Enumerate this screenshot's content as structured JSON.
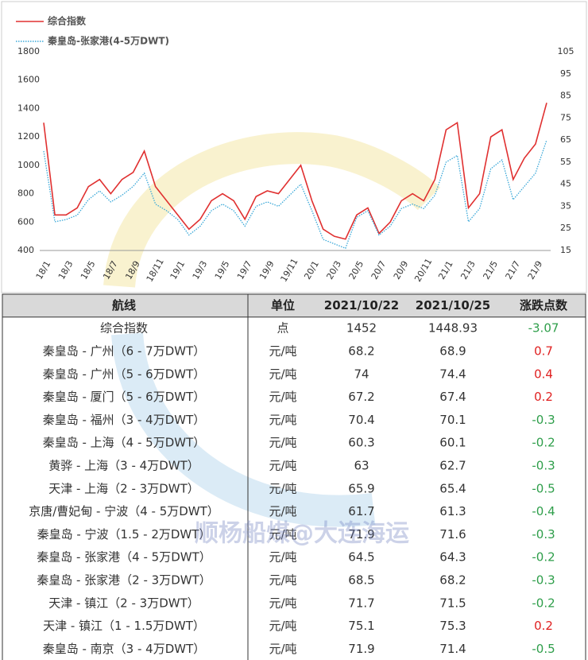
{
  "chart_data": {
    "type": "line",
    "categories": [
      "18/1",
      null,
      "18/3",
      null,
      "18/5",
      null,
      "18/7",
      null,
      "18/9",
      null,
      "18/11",
      null,
      "19/1",
      null,
      "19/3",
      null,
      "19/5",
      null,
      "19/7",
      null,
      "19/9",
      null,
      "19/11",
      null,
      "20/1",
      null,
      "20/3",
      null,
      "20/5",
      null,
      "20/7",
      null,
      "20/9",
      null,
      "20/11",
      null,
      "21/1",
      null,
      "21/3",
      null,
      "21/5",
      null,
      "21/7",
      null,
      "21/9",
      null
    ],
    "series": [
      {
        "name": "综合指数",
        "color": "#e03030",
        "style": "solid",
        "values": [
          1300,
          650,
          650,
          700,
          850,
          900,
          800,
          900,
          950,
          1100,
          850,
          750,
          650,
          550,
          620,
          750,
          800,
          750,
          620,
          780,
          820,
          800,
          900,
          1000,
          750,
          550,
          500,
          480,
          650,
          700,
          520,
          600,
          750,
          800,
          750,
          900,
          1250,
          1300,
          700,
          800,
          1200,
          1250,
          900,
          1050,
          1150,
          1440
        ]
      },
      {
        "name": "秦皇岛-张家港(4-5万DWT)",
        "color": "#3aa8d8",
        "style": "dotted",
        "axis": "y2",
        "values": [
          60,
          28,
          29,
          31,
          38,
          42,
          37,
          40,
          44,
          50,
          36,
          33,
          29,
          22,
          26,
          33,
          36,
          33,
          26,
          35,
          37,
          35,
          40,
          45,
          33,
          20,
          18,
          16,
          30,
          33,
          22,
          26,
          34,
          36,
          34,
          40,
          55,
          58,
          28,
          34,
          52,
          56,
          38,
          44,
          50,
          65
        ]
      }
    ],
    "ylim": [
      400,
      1800
    ],
    "yticks": [
      400,
      600,
      800,
      1000,
      1200,
      1400,
      1600,
      1800
    ],
    "y2lim": [
      15,
      105
    ],
    "y2ticks": [
      15,
      25,
      35,
      45,
      55,
      65,
      75,
      85,
      95,
      105
    ],
    "legend": "top-left"
  },
  "table": {
    "header": [
      "航线",
      "单位",
      "2021/10/22",
      "2021/10/25",
      "涨跌点数"
    ],
    "rows": [
      [
        "综合指数",
        "点",
        1452,
        1448.93,
        -3.07
      ],
      [
        "秦皇岛 - 广州（6 - 7万DWT）",
        "元/吨",
        68.2,
        68.9,
        0.7
      ],
      [
        "秦皇岛 - 广州（5 - 6万DWT）",
        "元/吨",
        74,
        74.4,
        0.4
      ],
      [
        "秦皇岛 - 厦门（5 - 6万DWT）",
        "元/吨",
        67.2,
        67.4,
        0.2
      ],
      [
        "秦皇岛 - 福州（3 - 4万DWT）",
        "元/吨",
        70.4,
        70.1,
        -0.3
      ],
      [
        "秦皇岛 - 上海（4 - 5万DWT）",
        "元/吨",
        60.3,
        60.1,
        -0.2
      ],
      [
        "黄骅 - 上海（3 - 4万DWT）",
        "元/吨",
        63,
        62.7,
        -0.3
      ],
      [
        "天津 - 上海（2 - 3万DWT）",
        "元/吨",
        65.9,
        65.4,
        -0.5
      ],
      [
        "京唐/曹妃甸 - 宁波（4 - 5万DWT）",
        "元/吨",
        61.7,
        61.3,
        -0.4
      ],
      [
        "秦皇岛 - 宁波（1.5 - 2万DWT）",
        "元/吨",
        71.9,
        71.6,
        -0.3
      ],
      [
        "秦皇岛 - 张家港（4 - 5万DWT）",
        "元/吨",
        64.5,
        64.3,
        -0.2
      ],
      [
        "秦皇岛 - 张家港（2 - 3万DWT）",
        "元/吨",
        68.5,
        68.2,
        -0.3
      ],
      [
        "天津 - 镇江（2 - 3万DWT）",
        "元/吨",
        71.7,
        71.5,
        -0.2
      ],
      [
        "天津 - 镇江（1 - 1.5万DWT）",
        "元/吨",
        75.1,
        75.3,
        0.2
      ],
      [
        "秦皇岛 - 南京（3 - 4万DWT）",
        "元/吨",
        71.9,
        71.4,
        -0.5
      ]
    ]
  },
  "watermark": "顺杨船煤@大连海运"
}
